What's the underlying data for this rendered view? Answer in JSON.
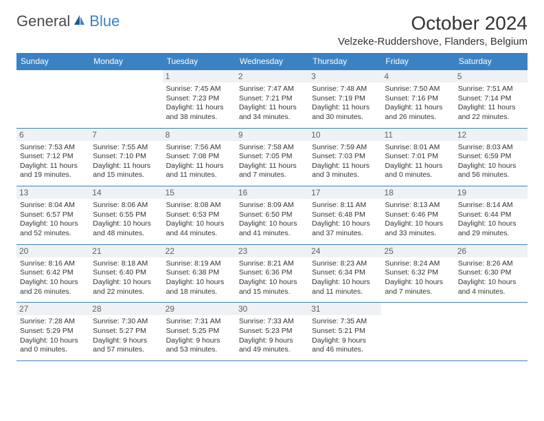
{
  "brand": {
    "general": "General",
    "blue": "Blue"
  },
  "title": "October 2024",
  "location": "Velzeke-Ruddershove, Flanders, Belgium",
  "colors": {
    "header_bg": "#3b82c4",
    "header_text": "#ffffff",
    "border": "#3b82c4",
    "daynum_bg": "#eef2f5",
    "text": "#333333"
  },
  "weekdays": [
    "Sunday",
    "Monday",
    "Tuesday",
    "Wednesday",
    "Thursday",
    "Friday",
    "Saturday"
  ],
  "weeks": [
    [
      null,
      null,
      {
        "n": "1",
        "sr": "Sunrise: 7:45 AM",
        "ss": "Sunset: 7:23 PM",
        "dl": "Daylight: 11 hours and 38 minutes."
      },
      {
        "n": "2",
        "sr": "Sunrise: 7:47 AM",
        "ss": "Sunset: 7:21 PM",
        "dl": "Daylight: 11 hours and 34 minutes."
      },
      {
        "n": "3",
        "sr": "Sunrise: 7:48 AM",
        "ss": "Sunset: 7:19 PM",
        "dl": "Daylight: 11 hours and 30 minutes."
      },
      {
        "n": "4",
        "sr": "Sunrise: 7:50 AM",
        "ss": "Sunset: 7:16 PM",
        "dl": "Daylight: 11 hours and 26 minutes."
      },
      {
        "n": "5",
        "sr": "Sunrise: 7:51 AM",
        "ss": "Sunset: 7:14 PM",
        "dl": "Daylight: 11 hours and 22 minutes."
      }
    ],
    [
      {
        "n": "6",
        "sr": "Sunrise: 7:53 AM",
        "ss": "Sunset: 7:12 PM",
        "dl": "Daylight: 11 hours and 19 minutes."
      },
      {
        "n": "7",
        "sr": "Sunrise: 7:55 AM",
        "ss": "Sunset: 7:10 PM",
        "dl": "Daylight: 11 hours and 15 minutes."
      },
      {
        "n": "8",
        "sr": "Sunrise: 7:56 AM",
        "ss": "Sunset: 7:08 PM",
        "dl": "Daylight: 11 hours and 11 minutes."
      },
      {
        "n": "9",
        "sr": "Sunrise: 7:58 AM",
        "ss": "Sunset: 7:05 PM",
        "dl": "Daylight: 11 hours and 7 minutes."
      },
      {
        "n": "10",
        "sr": "Sunrise: 7:59 AM",
        "ss": "Sunset: 7:03 PM",
        "dl": "Daylight: 11 hours and 3 minutes."
      },
      {
        "n": "11",
        "sr": "Sunrise: 8:01 AM",
        "ss": "Sunset: 7:01 PM",
        "dl": "Daylight: 11 hours and 0 minutes."
      },
      {
        "n": "12",
        "sr": "Sunrise: 8:03 AM",
        "ss": "Sunset: 6:59 PM",
        "dl": "Daylight: 10 hours and 56 minutes."
      }
    ],
    [
      {
        "n": "13",
        "sr": "Sunrise: 8:04 AM",
        "ss": "Sunset: 6:57 PM",
        "dl": "Daylight: 10 hours and 52 minutes."
      },
      {
        "n": "14",
        "sr": "Sunrise: 8:06 AM",
        "ss": "Sunset: 6:55 PM",
        "dl": "Daylight: 10 hours and 48 minutes."
      },
      {
        "n": "15",
        "sr": "Sunrise: 8:08 AM",
        "ss": "Sunset: 6:53 PM",
        "dl": "Daylight: 10 hours and 44 minutes."
      },
      {
        "n": "16",
        "sr": "Sunrise: 8:09 AM",
        "ss": "Sunset: 6:50 PM",
        "dl": "Daylight: 10 hours and 41 minutes."
      },
      {
        "n": "17",
        "sr": "Sunrise: 8:11 AM",
        "ss": "Sunset: 6:48 PM",
        "dl": "Daylight: 10 hours and 37 minutes."
      },
      {
        "n": "18",
        "sr": "Sunrise: 8:13 AM",
        "ss": "Sunset: 6:46 PM",
        "dl": "Daylight: 10 hours and 33 minutes."
      },
      {
        "n": "19",
        "sr": "Sunrise: 8:14 AM",
        "ss": "Sunset: 6:44 PM",
        "dl": "Daylight: 10 hours and 29 minutes."
      }
    ],
    [
      {
        "n": "20",
        "sr": "Sunrise: 8:16 AM",
        "ss": "Sunset: 6:42 PM",
        "dl": "Daylight: 10 hours and 26 minutes."
      },
      {
        "n": "21",
        "sr": "Sunrise: 8:18 AM",
        "ss": "Sunset: 6:40 PM",
        "dl": "Daylight: 10 hours and 22 minutes."
      },
      {
        "n": "22",
        "sr": "Sunrise: 8:19 AM",
        "ss": "Sunset: 6:38 PM",
        "dl": "Daylight: 10 hours and 18 minutes."
      },
      {
        "n": "23",
        "sr": "Sunrise: 8:21 AM",
        "ss": "Sunset: 6:36 PM",
        "dl": "Daylight: 10 hours and 15 minutes."
      },
      {
        "n": "24",
        "sr": "Sunrise: 8:23 AM",
        "ss": "Sunset: 6:34 PM",
        "dl": "Daylight: 10 hours and 11 minutes."
      },
      {
        "n": "25",
        "sr": "Sunrise: 8:24 AM",
        "ss": "Sunset: 6:32 PM",
        "dl": "Daylight: 10 hours and 7 minutes."
      },
      {
        "n": "26",
        "sr": "Sunrise: 8:26 AM",
        "ss": "Sunset: 6:30 PM",
        "dl": "Daylight: 10 hours and 4 minutes."
      }
    ],
    [
      {
        "n": "27",
        "sr": "Sunrise: 7:28 AM",
        "ss": "Sunset: 5:29 PM",
        "dl": "Daylight: 10 hours and 0 minutes."
      },
      {
        "n": "28",
        "sr": "Sunrise: 7:30 AM",
        "ss": "Sunset: 5:27 PM",
        "dl": "Daylight: 9 hours and 57 minutes."
      },
      {
        "n": "29",
        "sr": "Sunrise: 7:31 AM",
        "ss": "Sunset: 5:25 PM",
        "dl": "Daylight: 9 hours and 53 minutes."
      },
      {
        "n": "30",
        "sr": "Sunrise: 7:33 AM",
        "ss": "Sunset: 5:23 PM",
        "dl": "Daylight: 9 hours and 49 minutes."
      },
      {
        "n": "31",
        "sr": "Sunrise: 7:35 AM",
        "ss": "Sunset: 5:21 PM",
        "dl": "Daylight: 9 hours and 46 minutes."
      },
      null,
      null
    ]
  ]
}
